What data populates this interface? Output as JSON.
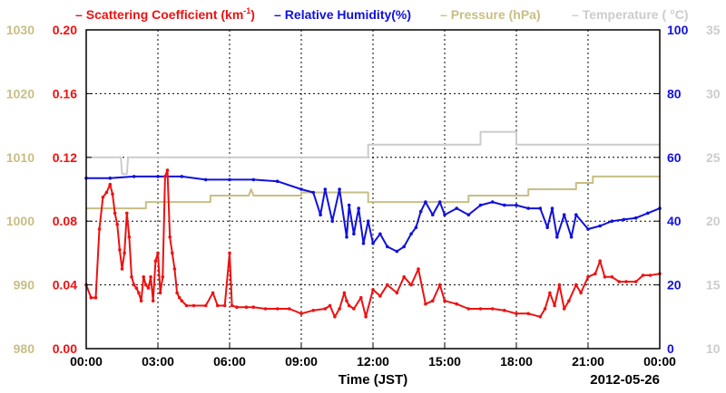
{
  "chart_data": {
    "type": "line",
    "xlabel": "Time (JST)",
    "date_label": "2012-05-26",
    "xlim": [
      0,
      24
    ],
    "x_ticks": [
      "00:00",
      "03:00",
      "06:00",
      "09:00",
      "12:00",
      "15:00",
      "18:00",
      "21:00",
      "00:00"
    ],
    "grid": true,
    "legend_position": "top",
    "legend_sep": "–",
    "axes": {
      "scattering": {
        "ylim": [
          0,
          0.2
        ],
        "ticks": [
          "0.00",
          "0.04",
          "0.08",
          "0.12",
          "0.16",
          "0.20"
        ],
        "color": "#ee1111"
      },
      "humidity": {
        "ylim": [
          0,
          100
        ],
        "ticks": [
          "0",
          "20",
          "40",
          "60",
          "80",
          "100"
        ],
        "color": "#1111dd"
      },
      "pressure": {
        "ylim": [
          980,
          1030
        ],
        "ticks": [
          "980",
          "990",
          "1000",
          "1010",
          "1020",
          "1030"
        ],
        "color": "#c8be84"
      },
      "temperature": {
        "ylim": [
          10,
          35
        ],
        "ticks": [
          "10",
          "15",
          "20",
          "25",
          "30",
          "35"
        ],
        "color": "#cccccc"
      }
    },
    "series": [
      {
        "name_main": "Scattering Coefficient (km",
        "name_sup": "-1",
        "name_tail": ")",
        "axis": "scattering",
        "color": "#ee1111",
        "markers": true,
        "x": [
          0.0,
          0.2,
          0.4,
          0.55,
          0.7,
          0.85,
          1.0,
          1.1,
          1.2,
          1.3,
          1.4,
          1.5,
          1.6,
          1.7,
          1.8,
          1.9,
          2.0,
          2.1,
          2.2,
          2.3,
          2.4,
          2.5,
          2.6,
          2.7,
          2.8,
          2.9,
          3.0,
          3.1,
          3.2,
          3.3,
          3.4,
          3.5,
          3.6,
          3.7,
          3.8,
          3.9,
          4.0,
          4.2,
          4.5,
          5.0,
          5.3,
          5.5,
          5.8,
          6.0,
          6.1,
          6.3,
          6.7,
          7.0,
          7.5,
          8.0,
          8.5,
          9.0,
          9.5,
          10.0,
          10.2,
          10.4,
          10.6,
          10.8,
          10.9,
          11.0,
          11.2,
          11.5,
          11.7,
          12.0,
          12.3,
          12.6,
          13.0,
          13.3,
          13.6,
          13.9,
          14.2,
          14.5,
          14.8,
          15.0,
          15.5,
          16.0,
          16.5,
          17.0,
          17.5,
          18.0,
          18.5,
          19.0,
          19.2,
          19.4,
          19.6,
          19.8,
          20.0,
          20.2,
          20.5,
          20.7,
          21.0,
          21.3,
          21.5,
          21.7,
          22.0,
          22.3,
          22.6,
          23.0,
          23.3,
          23.6,
          24.0
        ],
        "y": [
          0.04,
          0.032,
          0.032,
          0.075,
          0.095,
          0.098,
          0.103,
          0.097,
          0.085,
          0.078,
          0.062,
          0.05,
          0.06,
          0.085,
          0.07,
          0.045,
          0.04,
          0.038,
          0.035,
          0.03,
          0.045,
          0.04,
          0.038,
          0.045,
          0.03,
          0.055,
          0.06,
          0.035,
          0.045,
          0.108,
          0.112,
          0.07,
          0.06,
          0.05,
          0.035,
          0.032,
          0.03,
          0.027,
          0.027,
          0.027,
          0.035,
          0.027,
          0.027,
          0.06,
          0.027,
          0.026,
          0.026,
          0.026,
          0.025,
          0.025,
          0.025,
          0.022,
          0.024,
          0.025,
          0.027,
          0.02,
          0.025,
          0.035,
          0.03,
          0.027,
          0.025,
          0.032,
          0.02,
          0.037,
          0.033,
          0.04,
          0.035,
          0.045,
          0.04,
          0.05,
          0.028,
          0.03,
          0.04,
          0.03,
          0.028,
          0.025,
          0.025,
          0.025,
          0.024,
          0.022,
          0.022,
          0.02,
          0.025,
          0.035,
          0.027,
          0.04,
          0.025,
          0.03,
          0.04,
          0.035,
          0.045,
          0.047,
          0.055,
          0.045,
          0.045,
          0.042,
          0.042,
          0.042,
          0.046,
          0.046,
          0.047
        ]
      },
      {
        "name": "Relative Humidity(%)",
        "axis": "humidity",
        "color": "#1111dd",
        "markers": true,
        "x": [
          0.0,
          1.0,
          2.0,
          3.0,
          4.0,
          5.0,
          6.0,
          7.0,
          8.0,
          9.0,
          9.5,
          9.8,
          10.0,
          10.3,
          10.6,
          10.9,
          11.0,
          11.2,
          11.4,
          11.6,
          11.8,
          12.0,
          12.3,
          12.6,
          13.0,
          13.3,
          13.6,
          13.8,
          14.0,
          14.2,
          14.5,
          14.8,
          15.0,
          15.5,
          16.0,
          16.5,
          17.0,
          17.5,
          18.0,
          18.5,
          19.0,
          19.3,
          19.5,
          19.7,
          20.0,
          20.3,
          20.5,
          21.0,
          21.5,
          22.0,
          22.5,
          23.0,
          23.5,
          24.0
        ],
        "y": [
          53.5,
          53.5,
          54.0,
          54.0,
          54.0,
          53.0,
          53.0,
          53.0,
          52.5,
          50.0,
          49.0,
          42.0,
          50.0,
          40.0,
          50.0,
          35.0,
          45.0,
          36.0,
          44.0,
          33.0,
          40.0,
          33.0,
          36.0,
          32.0,
          30.5,
          32.0,
          36.0,
          38.0,
          43.0,
          46.0,
          42.0,
          46.0,
          42.0,
          44.0,
          42.0,
          45.0,
          46.0,
          45.0,
          45.0,
          44.0,
          44.0,
          38.0,
          44.0,
          35.0,
          42.0,
          35.0,
          42.0,
          37.5,
          38.5,
          40.0,
          40.5,
          41.0,
          42.5,
          44.0
        ]
      },
      {
        "name": "Pressure (hPa)",
        "axis": "pressure",
        "color": "#c8be84",
        "markers": false,
        "x": [
          0.0,
          2.5,
          2.5,
          5.2,
          5.2,
          6.8,
          6.9,
          7.0,
          9.0,
          9.0,
          11.8,
          11.8,
          16.0,
          16.0,
          18.5,
          18.5,
          20.5,
          20.5,
          21.2,
          21.2,
          24.0
        ],
        "y": [
          1002.0,
          1002.0,
          1003.0,
          1003.0,
          1004.0,
          1004.0,
          1005.0,
          1004.0,
          1004.0,
          1004.5,
          1004.5,
          1003.0,
          1003.0,
          1004.0,
          1004.0,
          1005.0,
          1005.0,
          1006.0,
          1006.0,
          1007.0,
          1007.0
        ]
      },
      {
        "name": "Temperature (",
        "name_deg": "°",
        "name_tail": "C)",
        "axis": "temperature",
        "color": "#cccccc",
        "markers": false,
        "x": [
          0.0,
          1.45,
          1.5,
          1.7,
          1.75,
          11.8,
          11.8,
          16.5,
          16.5,
          18.0,
          18.0,
          24.0
        ],
        "y": [
          25.0,
          25.0,
          23.7,
          23.7,
          25.0,
          25.0,
          26.0,
          26.0,
          27.0,
          27.0,
          26.0,
          26.0
        ]
      }
    ]
  }
}
